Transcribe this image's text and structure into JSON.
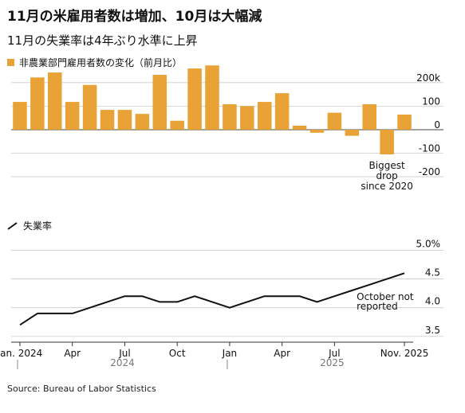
{
  "title": "11月の米雇用者数は増加、10月は大幅減",
  "subtitle": "11月の失業率は4年ぶり水準に上昇",
  "source": "Source: Bureau of Labor Statistics",
  "colors": {
    "bar": "#e8a235",
    "line": "#111111",
    "grid": "#cccccc",
    "axis": "#555555"
  },
  "chart_data": [
    {
      "type": "bar",
      "legend": "非農業部門雇用者数の変化（前月比）",
      "categories": [
        "Jan 2024",
        "Feb 2024",
        "Mar 2024",
        "Apr 2024",
        "May 2024",
        "Jun 2024",
        "Jul 2024",
        "Aug 2024",
        "Sep 2024",
        "Oct 2024",
        "Nov 2024",
        "Dec 2024",
        "Jan 2025",
        "Feb 2025",
        "Mar 2025",
        "Apr 2025",
        "May 2025",
        "Jun 2025",
        "Jul 2025",
        "Aug 2025",
        "Sep 2025",
        "Oct 2025",
        "Nov 2025"
      ],
      "values": [
        118,
        222,
        243,
        118,
        190,
        84,
        84,
        67,
        233,
        38,
        260,
        273,
        108,
        100,
        118,
        155,
        17,
        -13,
        72,
        -26,
        108,
        -105,
        64
      ],
      "ylim": [
        -220,
        240
      ],
      "yticks": [
        {
          "v": 200,
          "label": "200k"
        },
        {
          "v": 100,
          "label": "100"
        },
        {
          "v": 0,
          "label": "0"
        },
        {
          "v": -100,
          "label": "-100"
        },
        {
          "v": -200,
          "label": "-200"
        }
      ],
      "annotation": {
        "index": 21,
        "lines": [
          "Biggest",
          "drop",
          "since 2020"
        ]
      }
    },
    {
      "type": "line",
      "legend": "失業率",
      "categories": [
        "Jan 2024",
        "Feb 2024",
        "Mar 2024",
        "Apr 2024",
        "May 2024",
        "Jun 2024",
        "Jul 2024",
        "Aug 2024",
        "Sep 2024",
        "Oct 2024",
        "Nov 2024",
        "Dec 2024",
        "Jan 2025",
        "Feb 2025",
        "Mar 2025",
        "Apr 2025",
        "May 2025",
        "Jun 2025",
        "Jul 2025",
        "Aug 2025",
        "Sep 2025",
        "Oct 2025",
        "Nov 2025"
      ],
      "values": [
        3.7,
        3.9,
        3.9,
        3.9,
        4.0,
        4.1,
        4.2,
        4.2,
        4.1,
        4.1,
        4.2,
        4.1,
        4.0,
        4.1,
        4.2,
        4.2,
        4.2,
        4.1,
        4.2,
        4.3,
        4.4,
        null,
        4.6
      ],
      "ylim": [
        3.4,
        5.2
      ],
      "yticks": [
        {
          "v": 5.0,
          "label": "5.0%"
        },
        {
          "v": 4.5,
          "label": "4.5"
        },
        {
          "v": 4.0,
          "label": "4.0"
        },
        {
          "v": 3.5,
          "label": "3.5"
        }
      ],
      "annotation": {
        "lines": [
          "October not",
          "reported"
        ]
      },
      "xticks": [
        {
          "index": 0,
          "label": "Jan. 2024"
        },
        {
          "index": 3,
          "label": "Apr"
        },
        {
          "index": 6,
          "label": "Jul"
        },
        {
          "index": 9,
          "label": "Oct"
        },
        {
          "index": 12,
          "label": "Jan"
        },
        {
          "index": 15,
          "label": "Apr"
        },
        {
          "index": 18,
          "label": "Jul"
        },
        {
          "index": 22,
          "label": "Nov. 2025"
        }
      ],
      "years": [
        {
          "start": 0,
          "label": "2024"
        },
        {
          "start": 12,
          "label": "2025"
        }
      ]
    }
  ]
}
